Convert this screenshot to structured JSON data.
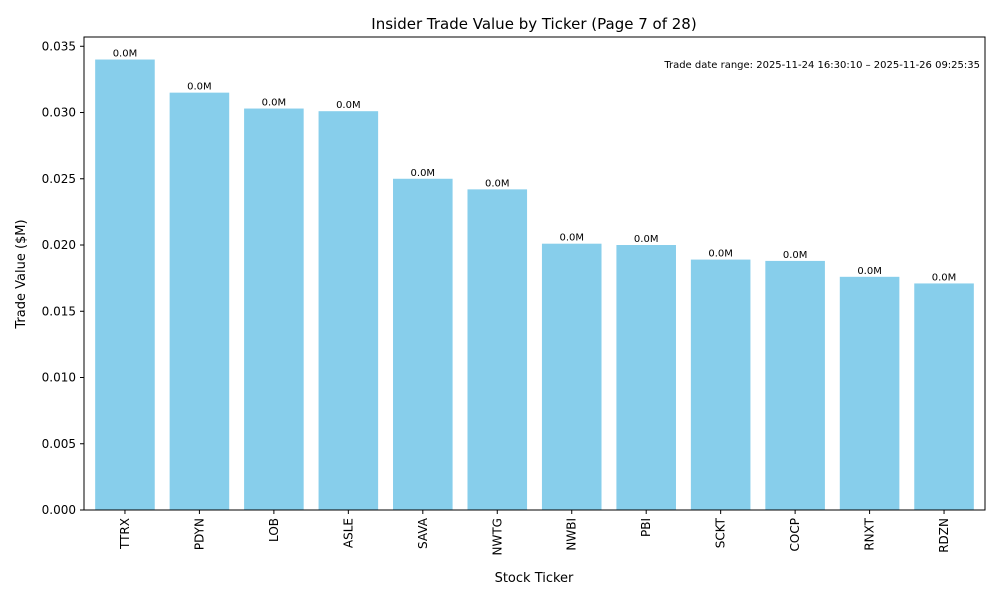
{
  "chart_data": {
    "type": "bar",
    "title": "Insider Trade Value by Ticker (Page 7 of 28)",
    "xlabel": "Stock Ticker",
    "ylabel": "Trade Value ($M)",
    "categories": [
      "TTRX",
      "PDYN",
      "LOB",
      "ASLE",
      "SAVA",
      "NWTG",
      "NWBI",
      "PBI",
      "SCKT",
      "COCP",
      "RNXT",
      "RDZN"
    ],
    "values": [
      0.034,
      0.0315,
      0.0303,
      0.0301,
      0.025,
      0.0242,
      0.0201,
      0.02,
      0.0189,
      0.0188,
      0.0176,
      0.0171
    ],
    "data_labels": [
      "0.0M",
      "0.0M",
      "0.0M",
      "0.0M",
      "0.0M",
      "0.0M",
      "0.0M",
      "0.0M",
      "0.0M",
      "0.0M",
      "0.0M",
      "0.0M"
    ],
    "ylim": [
      0,
      0.0357
    ],
    "yticks": [
      0.0,
      0.005,
      0.01,
      0.015,
      0.02,
      0.025,
      0.03,
      0.035
    ],
    "ytick_labels": [
      "0.000",
      "0.005",
      "0.010",
      "0.015",
      "0.020",
      "0.025",
      "0.030",
      "0.035"
    ],
    "annotation": "Trade date range: 2025-11-24 16:30:10 – 2025-11-26 09:25:35",
    "bar_color": "#87ceeb",
    "grid": false,
    "legend": "none"
  }
}
